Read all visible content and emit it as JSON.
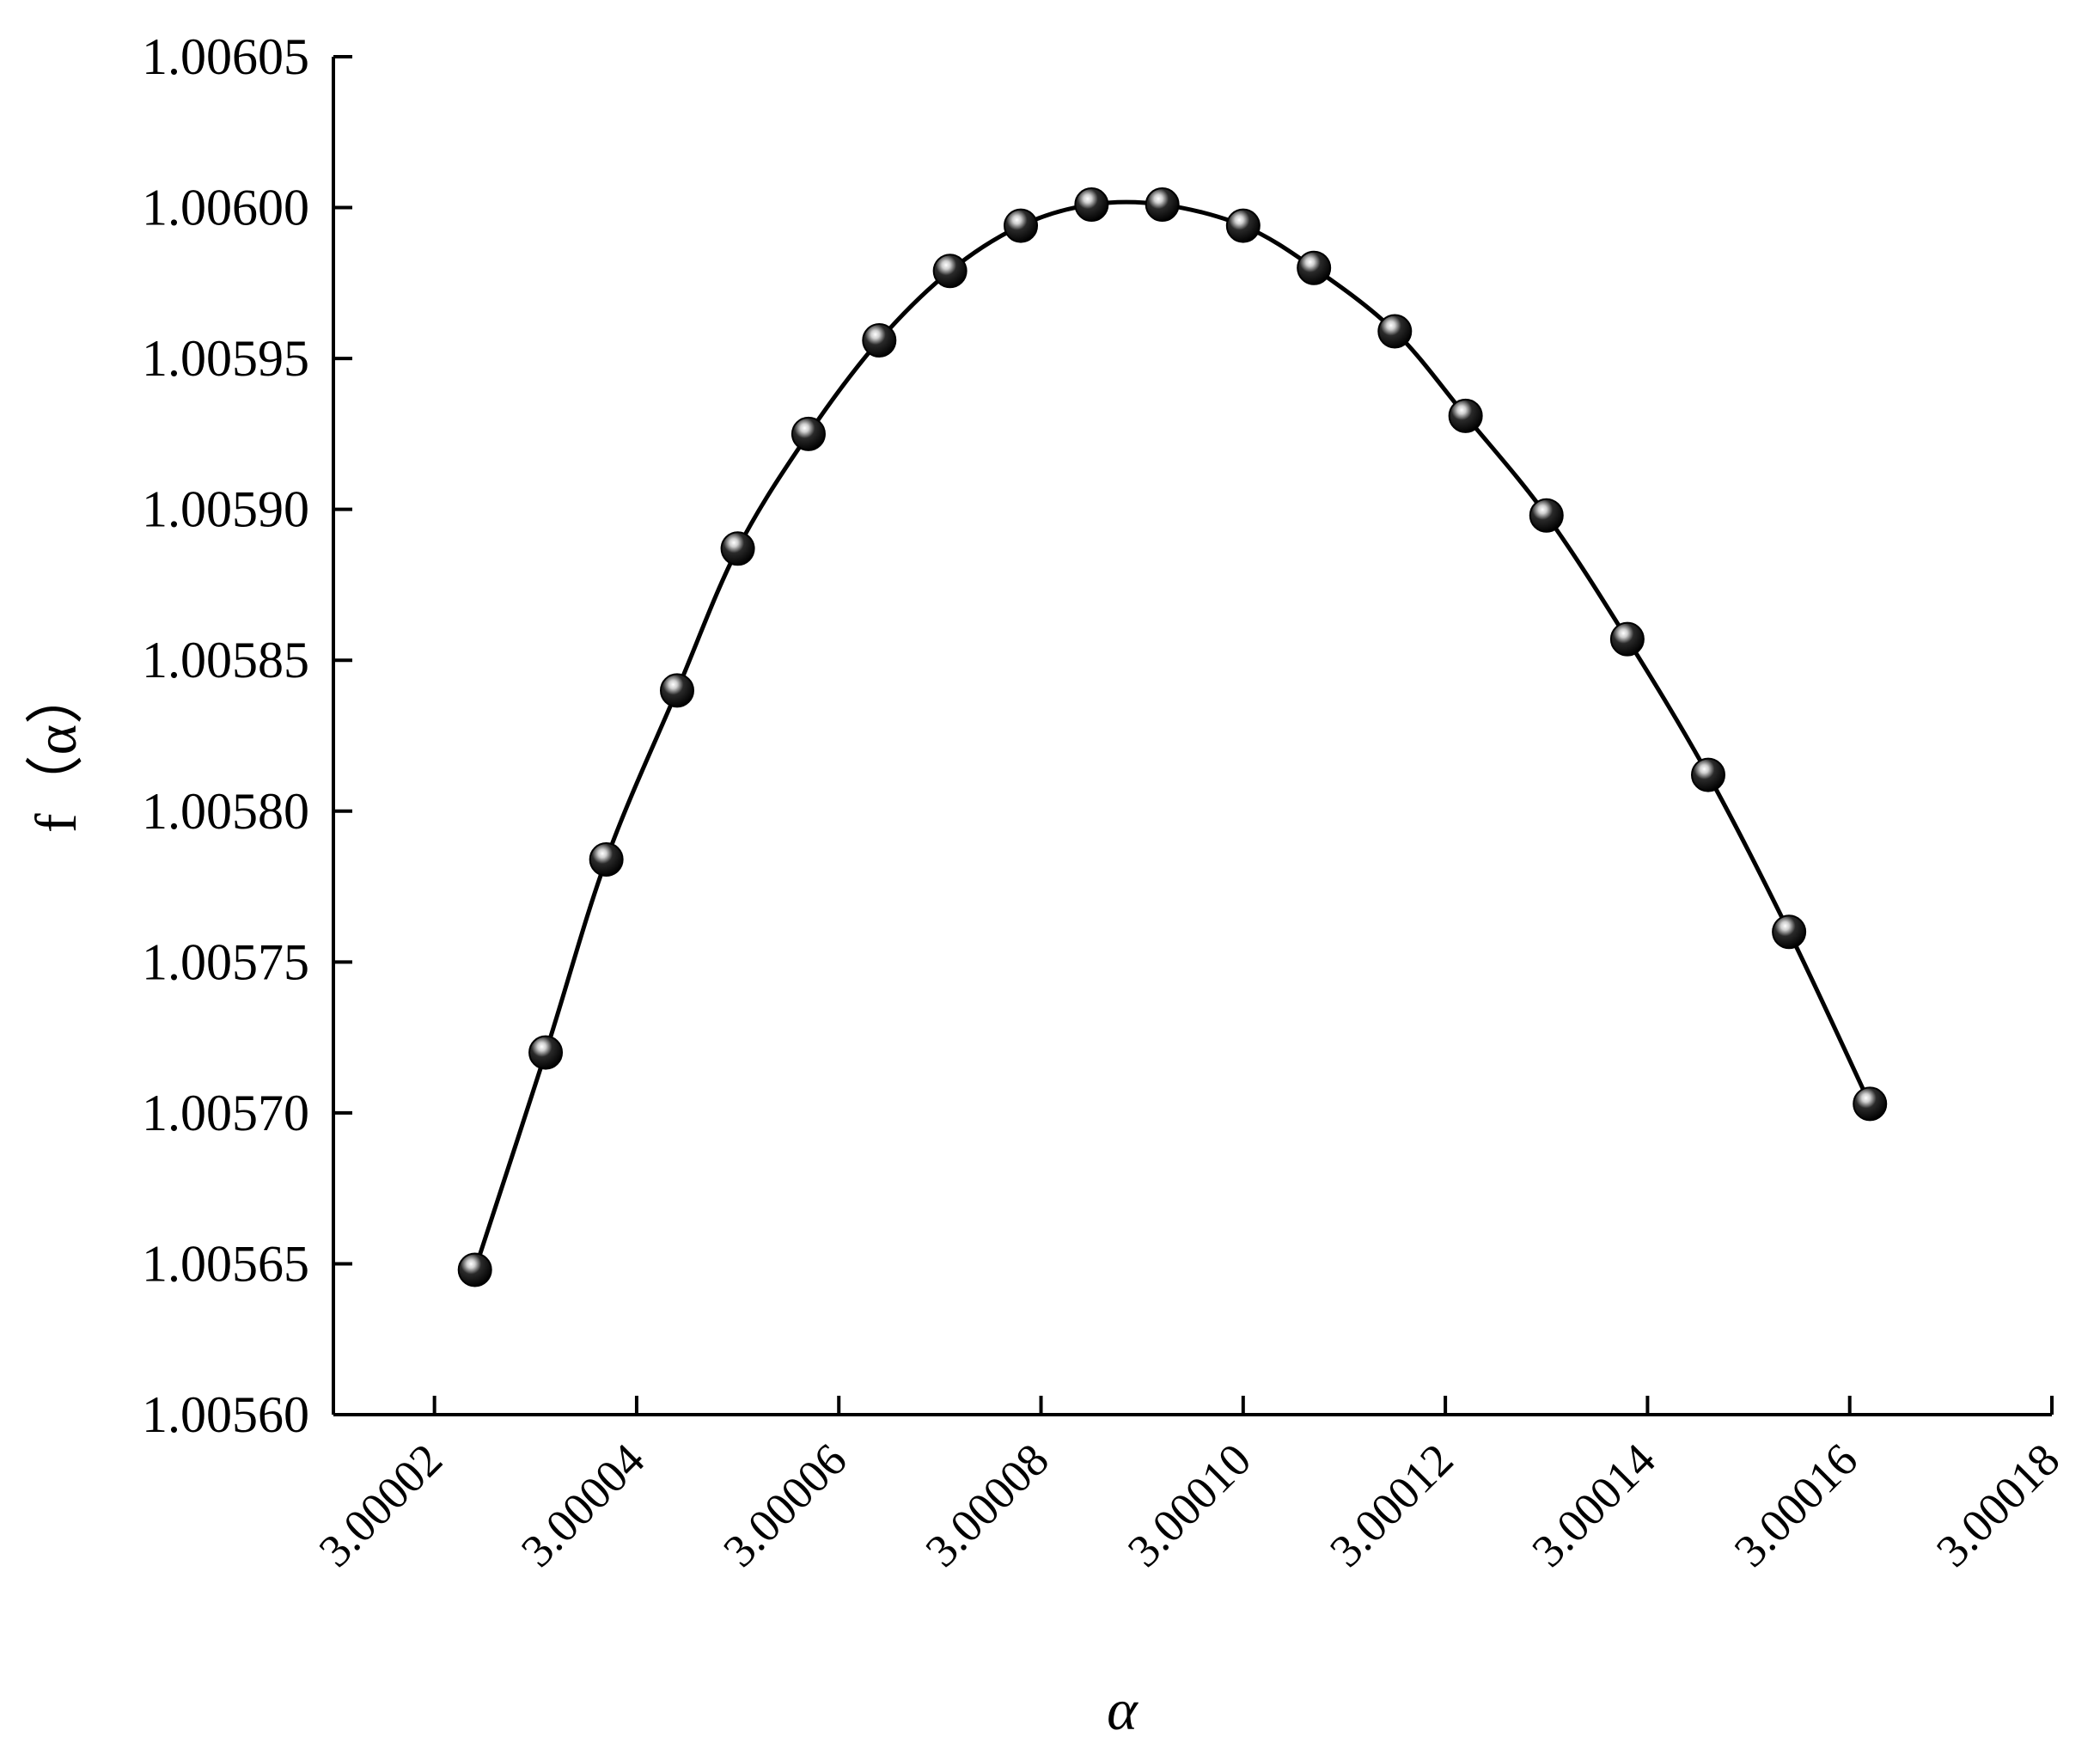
{
  "chart_data": {
    "type": "line",
    "title": "",
    "xlabel": "α",
    "ylabel": "f（α）",
    "xlim": [
      3.00001,
      3.00018
    ],
    "ylim": [
      1.0056,
      1.00605
    ],
    "x_ticks": [
      3.00002,
      3.00004,
      3.00006,
      3.00008,
      3.0001,
      3.00012,
      3.00014,
      3.00016,
      3.00018
    ],
    "x_tick_labels": [
      "3.00002",
      "3.00004",
      "3.00006",
      "3.00008",
      "3.00010",
      "3.00012",
      "3.00014",
      "3.00016",
      "3.00018"
    ],
    "y_ticks": [
      1.0056,
      1.00565,
      1.0057,
      1.00575,
      1.0058,
      1.00585,
      1.0059,
      1.00595,
      1.006,
      1.00605
    ],
    "y_tick_labels": [
      "1.00560",
      "1.00565",
      "1.00570",
      "1.00575",
      "1.00580",
      "1.00585",
      "1.00590",
      "1.00595",
      "1.00600",
      "1.00605"
    ],
    "grid": false,
    "marker": "sphere",
    "line_color": "#000000",
    "series": [
      {
        "x": [
          3.000024,
          3.000031,
          3.000037,
          3.000044,
          3.00005,
          3.000057,
          3.000064,
          3.000071,
          3.000078,
          3.000085,
          3.000092,
          3.0001,
          3.000107,
          3.000115,
          3.000122,
          3.00013,
          3.000138,
          3.000146,
          3.000154,
          3.000162
        ],
        "y": [
          1.005648,
          1.00572,
          1.005784,
          1.00584,
          1.005887,
          1.005925,
          1.005956,
          1.005979,
          1.005994,
          1.006001,
          1.006001,
          1.005994,
          1.00598,
          1.005959,
          1.005931,
          1.005898,
          1.005857,
          1.005812,
          1.00576,
          1.005703
        ]
      }
    ]
  }
}
